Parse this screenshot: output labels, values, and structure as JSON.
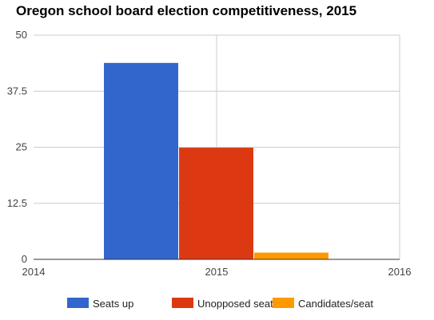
{
  "chart_data": {
    "type": "bar",
    "title": "Oregon school board election competitiveness, 2015",
    "x_ticks": [
      "2014",
      "2015",
      "2016"
    ],
    "y_ticks": [
      "0",
      "12.5",
      "25",
      "37.5",
      "50"
    ],
    "ylim": [
      0,
      50
    ],
    "xlim": [
      2014,
      2016
    ],
    "category": "2015",
    "series": [
      {
        "name": "Seats up",
        "value": 43.8,
        "color": "#3366cc"
      },
      {
        "name": "Unopposed seats",
        "value": 24.9,
        "color": "#dc3912"
      },
      {
        "name": "Candidates/seat",
        "value": 1.5,
        "color": "#ff9900"
      }
    ],
    "grid": true,
    "legend_position": "bottom"
  }
}
